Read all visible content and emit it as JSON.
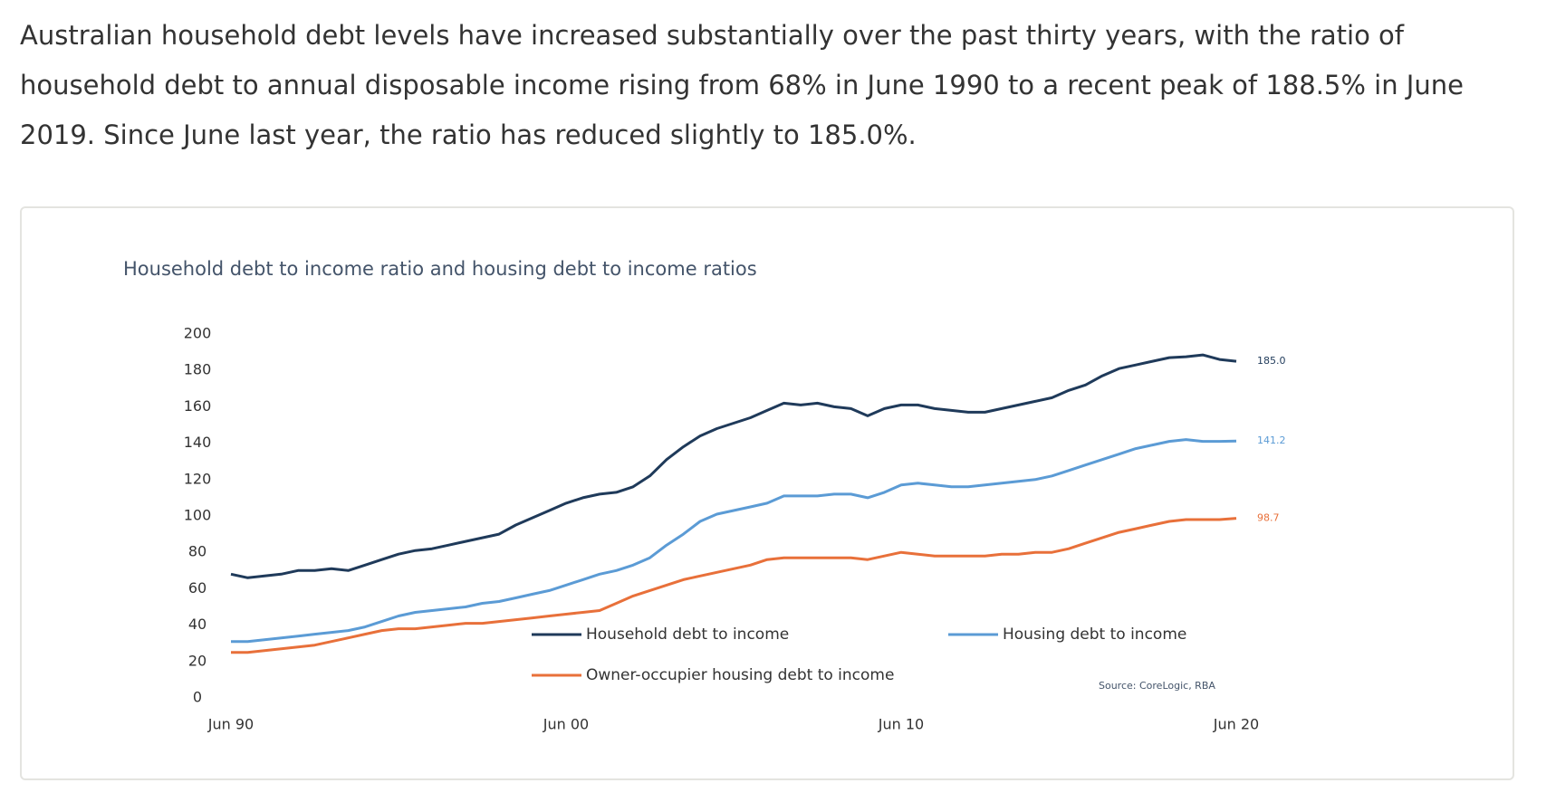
{
  "paragraph": "Australian household debt levels have increased substantially over the past thirty years, with the ratio of household debt to annual disposable income rising from 68% in June 1990 to a recent peak of 188.5% in June 2019.  Since June last year, the ratio has reduced slightly to 185.0%.",
  "chart_data": {
    "type": "line",
    "title": "Household debt to income ratio and housing debt to income ratios",
    "source": "Source: CoreLogic, RBA",
    "categories": [
      "Jun 90",
      null,
      null,
      null,
      null,
      null,
      null,
      null,
      null,
      null,
      null,
      null,
      null,
      null,
      null,
      null,
      null,
      null,
      null,
      null,
      "Jun 00",
      null,
      null,
      null,
      null,
      null,
      null,
      null,
      null,
      null,
      null,
      null,
      null,
      null,
      null,
      null,
      null,
      null,
      null,
      null,
      "Jun 10",
      null,
      null,
      null,
      null,
      null,
      null,
      null,
      null,
      null,
      null,
      null,
      null,
      null,
      null,
      null,
      null,
      null,
      null,
      null,
      "Jun 20"
    ],
    "ylim": [
      0,
      200
    ],
    "yticks": [
      0,
      20,
      40,
      60,
      80,
      100,
      120,
      140,
      160,
      180,
      200
    ],
    "grid": false,
    "series": [
      {
        "name": "Household debt to income",
        "color": "#1f3a5a",
        "values": [
          68,
          66,
          67,
          68,
          70,
          70,
          71,
          70,
          73,
          76,
          79,
          81,
          82,
          84,
          86,
          88,
          90,
          95,
          99,
          103,
          107,
          110,
          112,
          113,
          116,
          122,
          131,
          138,
          144,
          148,
          151,
          154,
          158,
          162,
          161,
          162,
          160,
          159,
          155,
          159,
          161,
          161,
          159,
          158,
          157,
          157,
          159,
          161,
          163,
          165,
          169,
          172,
          177,
          181,
          183,
          185,
          187,
          187.5,
          188.5,
          186,
          185
        ],
        "value_labels": [
          null,
          null,
          null,
          null,
          null,
          null,
          null,
          null,
          null,
          null,
          null,
          null,
          null,
          null,
          null,
          null,
          null,
          null,
          null,
          null,
          null,
          null,
          null,
          null,
          null,
          null,
          null,
          null,
          null,
          null,
          null,
          null,
          null,
          null,
          null,
          null,
          null,
          null,
          null,
          null,
          null,
          null,
          null,
          null,
          null,
          null,
          null,
          null,
          null,
          null,
          null,
          null,
          null,
          null,
          null,
          null,
          null,
          null,
          null,
          null,
          "185.0"
        ]
      },
      {
        "name": "Housing debt to income",
        "color": "#5b9bd5",
        "values": [
          31,
          31,
          32,
          33,
          34,
          35,
          36,
          37,
          39,
          42,
          45,
          47,
          48,
          49,
          50,
          52,
          53,
          55,
          57,
          59,
          62,
          65,
          68,
          70,
          73,
          77,
          84,
          90,
          97,
          101,
          103,
          105,
          107,
          111,
          111,
          111,
          112,
          112,
          110,
          113,
          117,
          118,
          117,
          116,
          116,
          117,
          118,
          119,
          120,
          122,
          125,
          128,
          131,
          134,
          137,
          139,
          141,
          142,
          141,
          141,
          141.2
        ],
        "value_labels": [
          null,
          null,
          null,
          null,
          null,
          null,
          null,
          null,
          null,
          null,
          null,
          null,
          null,
          null,
          null,
          null,
          null,
          null,
          null,
          null,
          null,
          null,
          null,
          null,
          null,
          null,
          null,
          null,
          null,
          null,
          null,
          null,
          null,
          null,
          null,
          null,
          null,
          null,
          null,
          null,
          null,
          null,
          null,
          null,
          null,
          null,
          null,
          null,
          null,
          null,
          null,
          null,
          null,
          null,
          null,
          null,
          null,
          null,
          null,
          null,
          "141.2"
        ]
      },
      {
        "name": "Owner-occupier housing debt to income",
        "color": "#e8703a",
        "values": [
          25,
          25,
          26,
          27,
          28,
          29,
          31,
          33,
          35,
          37,
          38,
          38,
          39,
          40,
          41,
          41,
          42,
          43,
          44,
          45,
          46,
          47,
          48,
          52,
          56,
          59,
          62,
          65,
          67,
          69,
          71,
          73,
          76,
          77,
          77,
          77,
          77,
          77,
          76,
          78,
          80,
          79,
          78,
          78,
          78,
          78,
          79,
          79,
          80,
          80,
          82,
          85,
          88,
          91,
          93,
          95,
          97,
          98,
          98,
          98,
          98.7
        ],
        "value_labels": [
          null,
          null,
          null,
          null,
          null,
          null,
          null,
          null,
          null,
          null,
          null,
          null,
          null,
          null,
          null,
          null,
          null,
          null,
          null,
          null,
          null,
          null,
          null,
          null,
          null,
          null,
          null,
          null,
          null,
          null,
          null,
          null,
          null,
          null,
          null,
          null,
          null,
          null,
          null,
          null,
          null,
          null,
          null,
          null,
          null,
          null,
          null,
          null,
          null,
          null,
          null,
          null,
          null,
          null,
          null,
          null,
          null,
          null,
          null,
          null,
          "98.7"
        ]
      }
    ]
  }
}
